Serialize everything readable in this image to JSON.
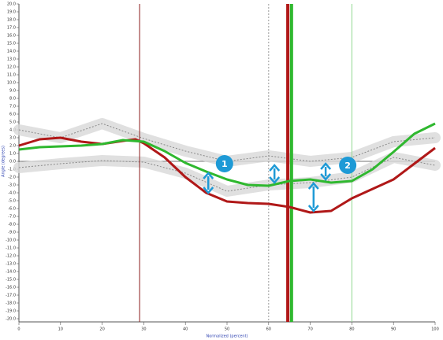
{
  "chart_data": {
    "type": "line",
    "y_label": "Angle (degrees)",
    "x_label": "Normalized (percent)",
    "xlim": [
      0,
      100
    ],
    "ylim": [
      -20,
      20
    ],
    "xticks": [
      0,
      10,
      20,
      30,
      40,
      50,
      60,
      70,
      80,
      90,
      100
    ],
    "yticks": [
      {
        "value": 20,
        "label": "20.0"
      },
      {
        "value": 19,
        "label": "19.0"
      },
      {
        "value": 18,
        "label": "18.0"
      },
      {
        "value": 17,
        "label": "17.0"
      },
      {
        "value": 16,
        "label": "16.0"
      },
      {
        "value": 15,
        "label": "15.0"
      },
      {
        "value": 14,
        "label": "14.0"
      },
      {
        "value": 13,
        "label": "13.0"
      },
      {
        "value": 12,
        "label": "12.0"
      },
      {
        "value": 11,
        "label": "11.0"
      },
      {
        "value": 10,
        "label": "10.0"
      },
      {
        "value": 9,
        "label": "9.0"
      },
      {
        "value": 8,
        "label": "8.0"
      },
      {
        "value": 7,
        "label": "7.0"
      },
      {
        "value": 6,
        "label": "6.0"
      },
      {
        "value": 5,
        "label": "5.0"
      },
      {
        "value": 4,
        "label": "4.0"
      },
      {
        "value": 3,
        "label": "3.0"
      },
      {
        "value": 2,
        "label": "2.0"
      },
      {
        "value": 1,
        "label": "1.0"
      },
      {
        "value": 0,
        "label": "0.0"
      },
      {
        "value": -1,
        "label": "-1.0"
      },
      {
        "value": -2,
        "label": "-2.0"
      },
      {
        "value": -3,
        "label": "-3.0"
      },
      {
        "value": -4,
        "label": "-4.0"
      },
      {
        "value": -5,
        "label": "-5.0"
      },
      {
        "value": -6,
        "label": "-6.0"
      },
      {
        "value": -7,
        "label": "-7.0"
      },
      {
        "value": -8,
        "label": "-8.0"
      },
      {
        "value": -9,
        "label": "-9.0"
      },
      {
        "value": -10,
        "label": "-10.0"
      },
      {
        "value": -11,
        "label": "-11.0"
      },
      {
        "value": -12,
        "label": "-12.0"
      },
      {
        "value": -13,
        "label": "-13.0"
      },
      {
        "value": -14,
        "label": "-14.0"
      },
      {
        "value": -15,
        "label": "-15.0"
      },
      {
        "value": -16,
        "label": "-16.0"
      },
      {
        "value": -17,
        "label": "-17.0"
      },
      {
        "value": -18,
        "label": "-18.0"
      },
      {
        "value": -19,
        "label": "-19.0"
      },
      {
        "value": -20,
        "label": "-20.0"
      }
    ],
    "zero_line": true,
    "band_series": [
      {
        "color": "#888888",
        "x": [
          0,
          10,
          20,
          30,
          40,
          50,
          60,
          70,
          80,
          90,
          100
        ],
        "values": [
          4.0,
          3.0,
          4.8,
          2.9,
          1.3,
          0.0,
          0.7,
          0.0,
          0.5,
          2.5,
          3.0
        ]
      },
      {
        "color": "#888888",
        "x": [
          0,
          10,
          20,
          30,
          40,
          50,
          60,
          70,
          80,
          90,
          100
        ],
        "values": [
          -0.8,
          -0.3,
          0.1,
          -0.1,
          -1.5,
          -3.8,
          -3.0,
          -2.7,
          -2.0,
          0.5,
          -0.5
        ]
      }
    ],
    "series": [
      {
        "color": "#b01818",
        "x": [
          0,
          5,
          10,
          15,
          20,
          25,
          28,
          30,
          35,
          40,
          45,
          50,
          55,
          60,
          65,
          70,
          75,
          80,
          85,
          90,
          95,
          100
        ],
        "values": [
          2.0,
          2.8,
          3.0,
          2.5,
          2.2,
          2.6,
          2.8,
          2.3,
          0.5,
          -2.0,
          -4.0,
          -5.1,
          -5.3,
          -5.4,
          -5.8,
          -6.5,
          -6.3,
          -4.7,
          -3.5,
          -2.3,
          -0.3,
          1.7
        ]
      },
      {
        "color": "#2fb82f",
        "x": [
          0,
          5,
          10,
          15,
          20,
          25,
          30,
          35,
          40,
          45,
          50,
          55,
          60,
          65,
          70,
          75,
          80,
          85,
          90,
          95,
          100
        ],
        "values": [
          1.5,
          1.8,
          1.9,
          2.0,
          2.2,
          2.7,
          2.5,
          1.3,
          -0.2,
          -1.3,
          -2.3,
          -3.0,
          -3.1,
          -2.5,
          -2.3,
          -2.7,
          -2.5,
          -1.0,
          1.2,
          3.5,
          4.8
        ]
      }
    ],
    "vlines": [
      {
        "x": 29,
        "color": "#8b1a1a",
        "style": "thin"
      },
      {
        "x": 60,
        "color": "#999999",
        "style": "dotted"
      },
      {
        "x": 64.6,
        "color": "#b01818",
        "style": "thick"
      },
      {
        "x": 65.5,
        "color": "#2fb82f",
        "style": "thick"
      },
      {
        "x": 80,
        "color": "#8fd88f",
        "style": "thin"
      }
    ],
    "arrows_color": "#1e9ad6",
    "arrows": [
      {
        "x": 45.5,
        "y1": -1.5,
        "y2": -4.0
      },
      {
        "x": 61.4,
        "y1": -0.5,
        "y2": -2.7
      },
      {
        "x": 73.7,
        "y1": -0.3,
        "y2": -2.3
      },
      {
        "x": 70.8,
        "y1": -2.8,
        "y2": -6.3
      }
    ],
    "markers": [
      {
        "text": "1",
        "x": 49.4,
        "y": -0.3
      },
      {
        "text": "2",
        "x": 79,
        "y": -0.5
      }
    ]
  }
}
